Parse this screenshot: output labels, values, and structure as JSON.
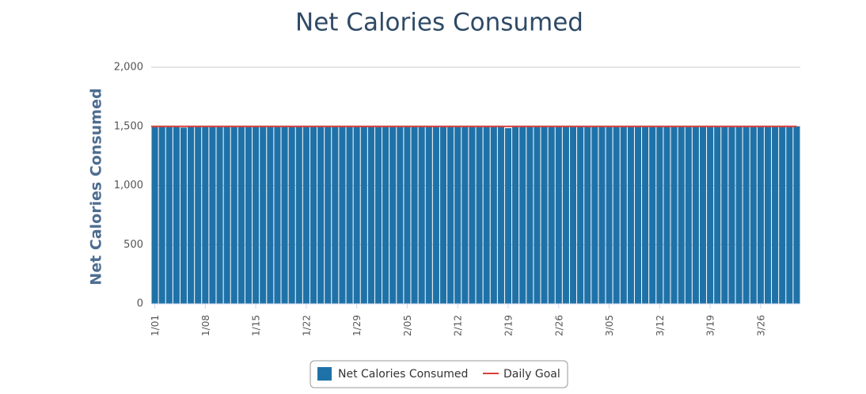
{
  "chart_data": {
    "type": "bar",
    "title": "Net Calories Consumed",
    "y_label": "Net Calories Consumed",
    "categories": [
      "1/01",
      null,
      null,
      null,
      null,
      null,
      null,
      "1/08",
      null,
      null,
      null,
      null,
      null,
      null,
      "1/15",
      null,
      null,
      null,
      null,
      null,
      null,
      "1/22",
      null,
      null,
      null,
      null,
      null,
      null,
      "1/29",
      null,
      null,
      null,
      null,
      null,
      null,
      "2/05",
      null,
      null,
      null,
      null,
      null,
      null,
      "2/12",
      null,
      null,
      null,
      null,
      null,
      null,
      "2/19",
      null,
      null,
      null,
      null,
      null,
      null,
      "2/26",
      null,
      null,
      null,
      null,
      null,
      null,
      "3/05",
      null,
      null,
      null,
      null,
      null,
      null,
      "3/12",
      null,
      null,
      null,
      null,
      null,
      null,
      "3/19",
      null,
      null,
      null,
      null,
      null,
      null,
      "3/26",
      null,
      null,
      null,
      null,
      null
    ],
    "series": [
      {
        "name": "Net Calories Consumed",
        "type": "bar",
        "color": "#1f72a8",
        "values": [
          1500,
          1500,
          1500,
          1500,
          1490,
          1500,
          1500,
          1500,
          1500,
          1500,
          1500,
          1500,
          1500,
          1500,
          1500,
          1500,
          1500,
          1500,
          1500,
          1500,
          1500,
          1500,
          1500,
          1500,
          1500,
          1500,
          1500,
          1500,
          1500,
          1500,
          1500,
          1500,
          1500,
          1500,
          1500,
          1500,
          1500,
          1500,
          1500,
          1500,
          1500,
          1500,
          1500,
          1500,
          1500,
          1500,
          1500,
          1500,
          1500,
          1485,
          1500,
          1500,
          1500,
          1500,
          1500,
          1500,
          1500,
          1500,
          1500,
          1500,
          1500,
          1500,
          1500,
          1500,
          1500,
          1500,
          1500,
          1500,
          1500,
          1500,
          1500,
          1500,
          1500,
          1500,
          1500,
          1500,
          1500,
          1500,
          1500,
          1500,
          1500,
          1500,
          1500,
          1500,
          1500,
          1500,
          1500,
          1500,
          1500,
          1500
        ]
      },
      {
        "name": "Daily Goal",
        "type": "line",
        "color": "#d9403a",
        "values": [
          1500,
          1500,
          1500,
          1500,
          1500,
          1500,
          1500,
          1500,
          1500,
          1500,
          1500,
          1500,
          1500,
          1500,
          1500,
          1500,
          1500,
          1500,
          1500,
          1500,
          1500,
          1500,
          1500,
          1500,
          1500,
          1500,
          1500,
          1500,
          1500,
          1500,
          1500,
          1500,
          1500,
          1500,
          1500,
          1500,
          1500,
          1500,
          1500,
          1500,
          1500,
          1500,
          1500,
          1500,
          1500,
          1500,
          1500,
          1500,
          1500,
          1500,
          1500,
          1500,
          1500,
          1500,
          1500,
          1500,
          1500,
          1500,
          1500,
          1500,
          1500,
          1500,
          1500,
          1500,
          1500,
          1500,
          1500,
          1500,
          1500,
          1500,
          1500,
          1500,
          1500,
          1500,
          1500,
          1500,
          1500,
          1500,
          1500,
          1500,
          1500,
          1500,
          1500,
          1500,
          1500,
          1500,
          1500,
          1500,
          1500,
          1500
        ]
      }
    ],
    "ylim": [
      0,
      2000
    ],
    "yticks": [
      0,
      500,
      {
        "value": 1000,
        "label": "1,000"
      },
      {
        "value": 1500,
        "label": "1,500"
      },
      {
        "value": 2000,
        "label": "2,000"
      }
    ],
    "grid": true
  }
}
